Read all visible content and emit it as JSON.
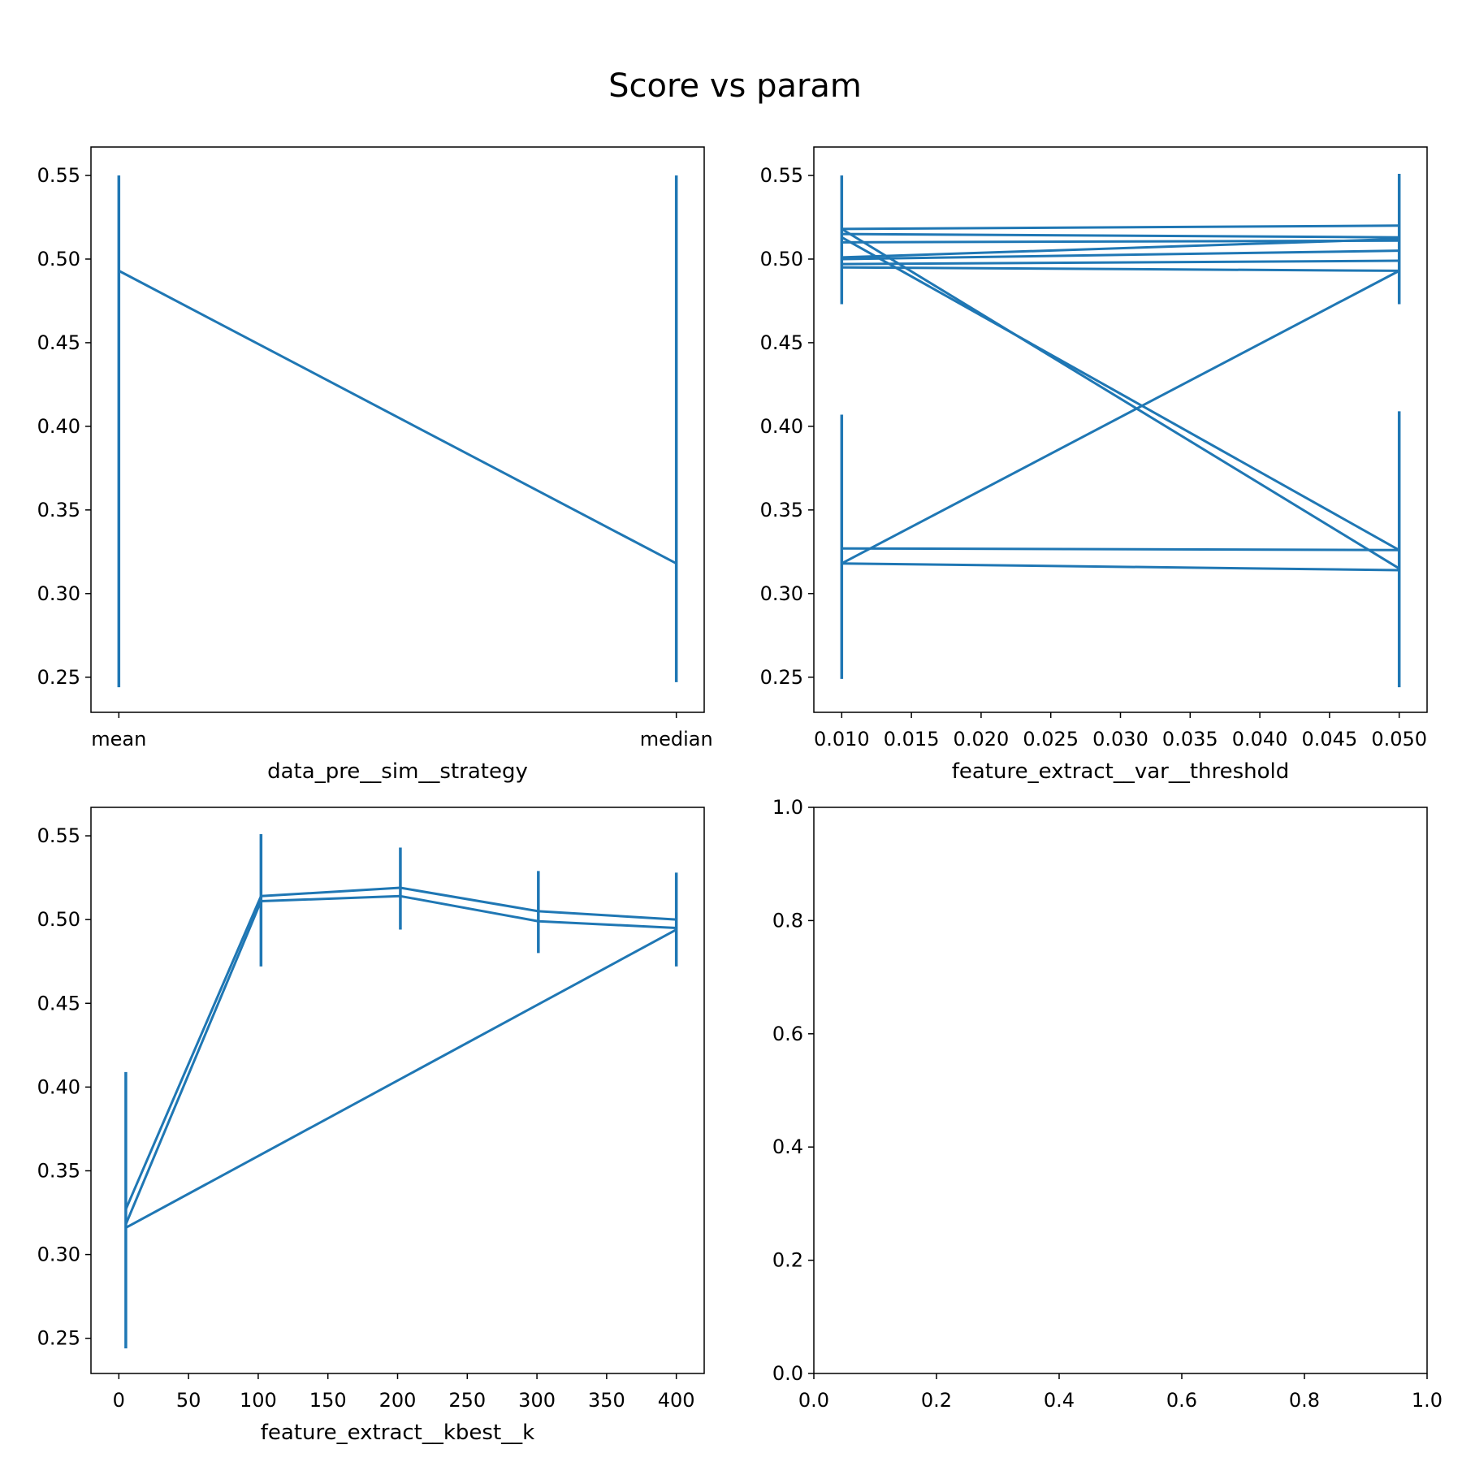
{
  "figure": {
    "title": "Score vs param",
    "line_color": "#1f77b4"
  },
  "chart_data": [
    {
      "type": "line",
      "name": "strategy",
      "xlabel": "data_pre__sim__strategy",
      "categories": [
        "mean",
        "median"
      ],
      "xlim": [
        -0.05,
        1.05
      ],
      "ylim": [
        0.229,
        0.567
      ],
      "yticks": [
        0.25,
        0.3,
        0.35,
        0.4,
        0.45,
        0.5,
        0.55
      ],
      "ytick_labels": [
        "0.25",
        "0.30",
        "0.35",
        "0.40",
        "0.45",
        "0.50",
        "0.55"
      ],
      "series": [
        {
          "x": [
            0,
            1
          ],
          "y": [
            0.493,
            0.318
          ]
        }
      ],
      "error_bars": [
        {
          "x": 0,
          "low": 0.244,
          "high": 0.55
        },
        {
          "x": 1,
          "low": 0.247,
          "high": 0.55
        }
      ]
    },
    {
      "type": "line",
      "name": "var_threshold",
      "xlabel": "feature_extract__var__threshold",
      "xlim": [
        0.008,
        0.052
      ],
      "xticks": [
        0.01,
        0.015,
        0.02,
        0.025,
        0.03,
        0.035,
        0.04,
        0.045,
        0.05
      ],
      "xtick_labels": [
        "0.010",
        "0.015",
        "0.020",
        "0.025",
        "0.030",
        "0.035",
        "0.040",
        "0.045",
        "0.050"
      ],
      "ylim": [
        0.229,
        0.567
      ],
      "yticks": [
        0.25,
        0.3,
        0.35,
        0.4,
        0.45,
        0.5,
        0.55
      ],
      "ytick_labels": [
        "0.25",
        "0.30",
        "0.35",
        "0.40",
        "0.45",
        "0.50",
        "0.55"
      ],
      "series": [
        {
          "x": [
            0.01,
            0.05
          ],
          "y": [
            0.518,
            0.52
          ]
        },
        {
          "x": [
            0.01,
            0.05
          ],
          "y": [
            0.515,
            0.513
          ]
        },
        {
          "x": [
            0.01,
            0.05
          ],
          "y": [
            0.51,
            0.511
          ]
        },
        {
          "x": [
            0.01,
            0.05
          ],
          "y": [
            0.501,
            0.512
          ]
        },
        {
          "x": [
            0.01,
            0.05
          ],
          "y": [
            0.5,
            0.505
          ]
        },
        {
          "x": [
            0.01,
            0.05
          ],
          "y": [
            0.497,
            0.499
          ]
        },
        {
          "x": [
            0.01,
            0.05
          ],
          "y": [
            0.495,
            0.493
          ]
        },
        {
          "x": [
            0.01,
            0.05
          ],
          "y": [
            0.518,
            0.315
          ]
        },
        {
          "x": [
            0.01,
            0.05
          ],
          "y": [
            0.513,
            0.326
          ]
        },
        {
          "x": [
            0.01,
            0.05
          ],
          "y": [
            0.318,
            0.493
          ]
        },
        {
          "x": [
            0.01,
            0.05
          ],
          "y": [
            0.327,
            0.326
          ]
        },
        {
          "x": [
            0.01,
            0.05
          ],
          "y": [
            0.318,
            0.314
          ]
        }
      ],
      "error_bars": [
        {
          "x": 0.01,
          "low": 0.473,
          "high": 0.55
        },
        {
          "x": 0.01,
          "low": 0.249,
          "high": 0.407
        },
        {
          "x": 0.05,
          "low": 0.473,
          "high": 0.551
        },
        {
          "x": 0.05,
          "low": 0.244,
          "high": 0.409
        }
      ]
    },
    {
      "type": "line",
      "name": "kbest_k",
      "xlabel": "feature_extract__kbest__k",
      "xlim": [
        -20,
        420
      ],
      "xticks": [
        0,
        50,
        100,
        150,
        200,
        250,
        300,
        350,
        400
      ],
      "xtick_labels": [
        "0",
        "50",
        "100",
        "150",
        "200",
        "250",
        "300",
        "350",
        "400"
      ],
      "ylim": [
        0.229,
        0.567
      ],
      "yticks": [
        0.25,
        0.3,
        0.35,
        0.4,
        0.45,
        0.5,
        0.55
      ],
      "ytick_labels": [
        "0.25",
        "0.30",
        "0.35",
        "0.40",
        "0.45",
        "0.50",
        "0.55"
      ],
      "series": [
        {
          "x": [
            5,
            102,
            202,
            301,
            400
          ],
          "y": [
            0.327,
            0.514,
            0.519,
            0.505,
            0.5
          ]
        },
        {
          "x": [
            5,
            102,
            202,
            301,
            400
          ],
          "y": [
            0.318,
            0.511,
            0.514,
            0.499,
            0.495
          ]
        },
        {
          "x": [
            5,
            400
          ],
          "y": [
            0.316,
            0.494
          ]
        }
      ],
      "error_bars": [
        {
          "x": 5,
          "low": 0.244,
          "high": 0.409
        },
        {
          "x": 102,
          "low": 0.472,
          "high": 0.551
        },
        {
          "x": 202,
          "low": 0.494,
          "high": 0.543
        },
        {
          "x": 301,
          "low": 0.48,
          "high": 0.529
        },
        {
          "x": 400,
          "low": 0.472,
          "high": 0.528
        }
      ]
    },
    {
      "type": "line",
      "name": "empty",
      "xlabel": "",
      "xlim": [
        0,
        1
      ],
      "xticks": [
        0.0,
        0.2,
        0.4,
        0.6,
        0.8,
        1.0
      ],
      "xtick_labels": [
        "0.0",
        "0.2",
        "0.4",
        "0.6",
        "0.8",
        "1.0"
      ],
      "ylim": [
        0,
        1
      ],
      "yticks": [
        0.0,
        0.2,
        0.4,
        0.6,
        0.8,
        1.0
      ],
      "ytick_labels": [
        "0.0",
        "0.2",
        "0.4",
        "0.6",
        "0.8",
        "1.0"
      ],
      "series": [],
      "error_bars": []
    }
  ]
}
